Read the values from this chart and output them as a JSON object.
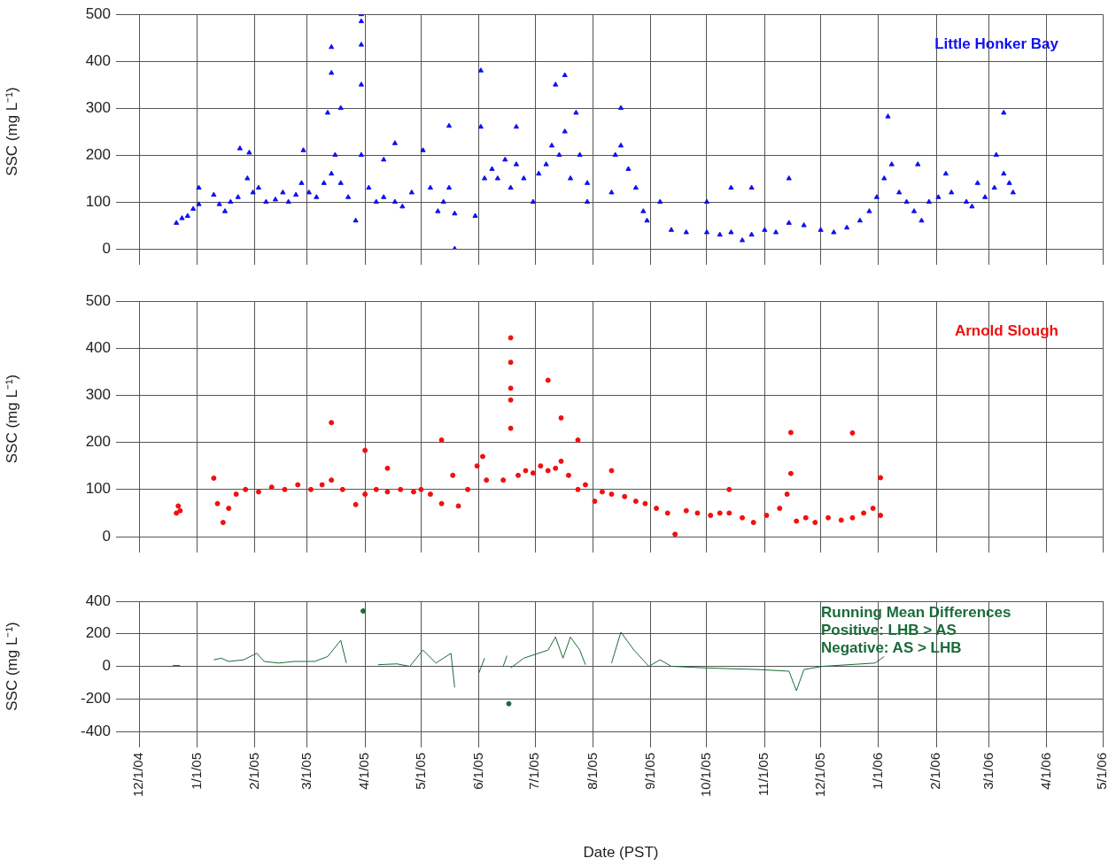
{
  "chart_data": [
    {
      "type": "scatter",
      "ylabel": "SSC (mg L⁻¹)",
      "legend": "top right",
      "marker": "triangle",
      "grid": true,
      "tick_labels": "y",
      "xlim": [
        "2004-12-01",
        "2006-05-01"
      ],
      "xticks": [
        {
          "value": "2004-12-01",
          "label": null
        },
        {
          "value": "2005-01-01",
          "label": null
        },
        {
          "value": "2005-02-01",
          "label": null
        },
        {
          "value": "2005-03-01",
          "label": null
        },
        {
          "value": "2005-04-01",
          "label": null
        },
        {
          "value": "2005-05-01",
          "label": null
        },
        {
          "value": "2005-06-01",
          "label": null
        },
        {
          "value": "2005-07-01",
          "label": null
        },
        {
          "value": "2005-08-01",
          "label": null
        },
        {
          "value": "2005-09-01",
          "label": null
        },
        {
          "value": "2005-10-01",
          "label": null
        },
        {
          "value": "2005-11-01",
          "label": null
        },
        {
          "value": "2005-12-01",
          "label": null
        },
        {
          "value": "2006-01-01",
          "label": null
        },
        {
          "value": "2006-02-01",
          "label": null
        },
        {
          "value": "2006-03-01",
          "label": null
        },
        {
          "value": "2006-04-01",
          "label": null
        },
        {
          "value": "2006-05-01",
          "label": null
        }
      ],
      "ylim": [
        0,
        500
      ],
      "yticks": [
        0,
        100,
        200,
        300,
        400,
        500
      ],
      "series": [
        {
          "name": "Little Honker Bay",
          "color": "#1010f0",
          "x": [
            "2004-12-21",
            "2004-12-24",
            "2004-12-27",
            "2004-12-30",
            "2005-01-02",
            "2005-01-02",
            "2005-01-10",
            "2005-01-13",
            "2005-01-16",
            "2005-01-19",
            "2005-01-23",
            "2005-01-24",
            "2005-01-28",
            "2005-01-29",
            "2005-01-31",
            "2005-02-03",
            "2005-02-07",
            "2005-02-12",
            "2005-02-16",
            "2005-02-19",
            "2005-02-23",
            "2005-02-26",
            "2005-02-27",
            "2005-03-02",
            "2005-03-06",
            "2005-03-10",
            "2005-03-12",
            "2005-03-14",
            "2005-03-14",
            "2005-03-14",
            "2005-03-16",
            "2005-03-19",
            "2005-03-19",
            "2005-03-23",
            "2005-03-27",
            "2005-03-30",
            "2005-03-30",
            "2005-03-30",
            "2005-03-30",
            "2005-03-30",
            "2005-04-03",
            "2005-04-07",
            "2005-04-11",
            "2005-04-11",
            "2005-04-17",
            "2005-04-17",
            "2005-04-21",
            "2005-04-26",
            "2005-05-02",
            "2005-05-06",
            "2005-05-10",
            "2005-05-13",
            "2005-05-16",
            "2005-05-16",
            "2005-05-19",
            "2005-05-19",
            "2005-05-30",
            "2005-06-02",
            "2005-06-02",
            "2005-06-04",
            "2005-06-08",
            "2005-06-11",
            "2005-06-15",
            "2005-06-18",
            "2005-06-21",
            "2005-06-21",
            "2005-06-25",
            "2005-06-30",
            "2005-07-03",
            "2005-07-07",
            "2005-07-10",
            "2005-07-12",
            "2005-07-14",
            "2005-07-17",
            "2005-07-17",
            "2005-07-20",
            "2005-07-23",
            "2005-07-25",
            "2005-07-29",
            "2005-07-29",
            "2005-08-11",
            "2005-08-13",
            "2005-08-16",
            "2005-08-16",
            "2005-08-20",
            "2005-08-24",
            "2005-08-28",
            "2005-08-30",
            "2005-09-06",
            "2005-09-12",
            "2005-09-20",
            "2005-10-01",
            "2005-10-01",
            "2005-10-08",
            "2005-10-14",
            "2005-10-14",
            "2005-10-20",
            "2005-10-25",
            "2005-10-25",
            "2005-11-01",
            "2005-11-07",
            "2005-11-14",
            "2005-11-14",
            "2005-11-22",
            "2005-12-01",
            "2005-12-08",
            "2005-12-15",
            "2005-12-22",
            "2005-12-27",
            "2005-12-31",
            "2006-01-04",
            "2006-01-06",
            "2006-01-08",
            "2006-01-12",
            "2006-01-16",
            "2006-01-20",
            "2006-01-22",
            "2006-01-24",
            "2006-01-28",
            "2006-02-02",
            "2006-02-06",
            "2006-02-09",
            "2006-02-17",
            "2006-02-20",
            "2006-02-23",
            "2006-02-27",
            "2006-03-04",
            "2006-03-05",
            "2006-03-09",
            "2006-03-09",
            "2006-03-12",
            "2006-03-14"
          ],
          "values": [
            55,
            65,
            70,
            85,
            95,
            130,
            115,
            95,
            80,
            100,
            110,
            214,
            150,
            205,
            120,
            130,
            100,
            105,
            120,
            100,
            115,
            140,
            210,
            120,
            110,
            140,
            290,
            430,
            375,
            160,
            200,
            300,
            140,
            110,
            60,
            500,
            485,
            435,
            350,
            200,
            130,
            100,
            110,
            190,
            225,
            100,
            90,
            120,
            210,
            130,
            80,
            100,
            130,
            262,
            75,
            0,
            70,
            380,
            260,
            150,
            170,
            150,
            190,
            130,
            260,
            180,
            150,
            100,
            160,
            180,
            220,
            350,
            200,
            370,
            250,
            150,
            290,
            200,
            100,
            140,
            120,
            200,
            300,
            220,
            170,
            130,
            80,
            60,
            100,
            40,
            35,
            100,
            35,
            30,
            130,
            35,
            18,
            130,
            30,
            40,
            35,
            150,
            55,
            50,
            40,
            35,
            45,
            60,
            80,
            110,
            150,
            282,
            180,
            120,
            100,
            80,
            180,
            60,
            100,
            110,
            160,
            120,
            100,
            90,
            140,
            110,
            130,
            200,
            290,
            160,
            140,
            120
          ]
        }
      ]
    },
    {
      "type": "scatter",
      "ylabel": "SSC (mg L⁻¹)",
      "legend": "top right",
      "marker": "circle",
      "grid": true,
      "tick_labels": "y",
      "xlim": [
        "2004-12-01",
        "2006-05-01"
      ],
      "xticks": [
        {
          "value": "2004-12-01",
          "label": null
        },
        {
          "value": "2005-01-01",
          "label": null
        },
        {
          "value": "2005-02-01",
          "label": null
        },
        {
          "value": "2005-03-01",
          "label": null
        },
        {
          "value": "2005-04-01",
          "label": null
        },
        {
          "value": "2005-05-01",
          "label": null
        },
        {
          "value": "2005-06-01",
          "label": null
        },
        {
          "value": "2005-07-01",
          "label": null
        },
        {
          "value": "2005-08-01",
          "label": null
        },
        {
          "value": "2005-09-01",
          "label": null
        },
        {
          "value": "2005-10-01",
          "label": null
        },
        {
          "value": "2005-11-01",
          "label": null
        },
        {
          "value": "2005-12-01",
          "label": null
        },
        {
          "value": "2006-01-01",
          "label": null
        },
        {
          "value": "2006-02-01",
          "label": null
        },
        {
          "value": "2006-03-01",
          "label": null
        },
        {
          "value": "2006-04-01",
          "label": null
        },
        {
          "value": "2006-05-01",
          "label": null
        }
      ],
      "ylim": [
        0,
        500
      ],
      "yticks": [
        0,
        100,
        200,
        300,
        400,
        500
      ],
      "series": [
        {
          "name": "Arnold Slough",
          "color": "#f01010",
          "x": [
            "2004-12-21",
            "2004-12-22",
            "2004-12-23",
            "2005-01-10",
            "2005-01-12",
            "2005-01-15",
            "2005-01-18",
            "2005-01-22",
            "2005-01-27",
            "2005-02-03",
            "2005-02-10",
            "2005-02-17",
            "2005-02-24",
            "2005-03-03",
            "2005-03-09",
            "2005-03-14",
            "2005-03-14",
            "2005-03-20",
            "2005-03-27",
            "2005-04-01",
            "2005-04-01",
            "2005-04-07",
            "2005-04-13",
            "2005-04-13",
            "2005-04-20",
            "2005-04-27",
            "2005-05-01",
            "2005-05-06",
            "2005-05-12",
            "2005-05-12",
            "2005-05-18",
            "2005-05-21",
            "2005-05-26",
            "2005-05-31",
            "2005-06-03",
            "2005-06-05",
            "2005-06-14",
            "2005-06-18",
            "2005-06-18",
            "2005-06-18",
            "2005-06-18",
            "2005-06-18",
            "2005-06-22",
            "2005-06-26",
            "2005-06-30",
            "2005-07-04",
            "2005-07-08",
            "2005-07-08",
            "2005-07-12",
            "2005-07-15",
            "2005-07-15",
            "2005-07-19",
            "2005-07-24",
            "2005-07-24",
            "2005-07-28",
            "2005-08-02",
            "2005-08-06",
            "2005-08-11",
            "2005-08-11",
            "2005-08-18",
            "2005-08-24",
            "2005-08-29",
            "2005-09-04",
            "2005-09-10",
            "2005-09-14",
            "2005-09-20",
            "2005-09-26",
            "2005-10-03",
            "2005-10-08",
            "2005-10-13",
            "2005-10-13",
            "2005-10-20",
            "2005-10-26",
            "2005-11-02",
            "2005-11-09",
            "2005-11-13",
            "2005-11-15",
            "2005-11-15",
            "2005-11-18",
            "2005-11-23",
            "2005-11-28",
            "2005-12-05",
            "2005-12-12",
            "2005-12-18",
            "2005-12-18",
            "2005-12-24",
            "2005-12-29",
            "2006-01-02",
            "2006-01-02"
          ],
          "values": [
            50,
            65,
            55,
            124,
            70,
            30,
            60,
            90,
            100,
            95,
            105,
            100,
            110,
            100,
            110,
            242,
            120,
            100,
            68,
            183,
            90,
            100,
            145,
            95,
            100,
            95,
            100,
            90,
            205,
            70,
            130,
            65,
            100,
            150,
            170,
            120,
            120,
            422,
            370,
            315,
            290,
            230,
            130,
            140,
            135,
            150,
            332,
            140,
            145,
            252,
            160,
            130,
            205,
            100,
            110,
            75,
            95,
            140,
            90,
            85,
            75,
            70,
            60,
            50,
            5,
            55,
            50,
            45,
            50,
            100,
            50,
            40,
            30,
            45,
            60,
            90,
            221,
            134,
            33,
            40,
            30,
            40,
            35,
            220,
            40,
            50,
            60,
            125,
            45
          ]
        }
      ]
    },
    {
      "type": "line",
      "ylabel": "SSC (mg L⁻¹)",
      "xlabel": "Date (PST)",
      "grid": true,
      "annotations": [
        "Running Mean Differences",
        "Positive: LHB > AS",
        "Negative: AS > LHB"
      ],
      "xlim": [
        "2004-12-01",
        "2006-05-01"
      ],
      "xticks": [
        {
          "value": "2004-12-01",
          "label": "12/1/04"
        },
        {
          "value": "2005-01-01",
          "label": "1/1/05"
        },
        {
          "value": "2005-02-01",
          "label": "2/1/05"
        },
        {
          "value": "2005-03-01",
          "label": "3/1/05"
        },
        {
          "value": "2005-04-01",
          "label": "4/1/05"
        },
        {
          "value": "2005-05-01",
          "label": "5/1/05"
        },
        {
          "value": "2005-06-01",
          "label": "6/1/05"
        },
        {
          "value": "2005-07-01",
          "label": "7/1/05"
        },
        {
          "value": "2005-08-01",
          "label": "8/1/05"
        },
        {
          "value": "2005-09-01",
          "label": "9/1/05"
        },
        {
          "value": "2005-10-01",
          "label": "10/1/05"
        },
        {
          "value": "2005-11-01",
          "label": "11/1/05"
        },
        {
          "value": "2005-12-01",
          "label": "12/1/05"
        },
        {
          "value": "2006-01-01",
          "label": "1/1/06"
        },
        {
          "value": "2006-02-01",
          "label": "2/1/06"
        },
        {
          "value": "2006-03-01",
          "label": "3/1/06"
        },
        {
          "value": "2006-04-01",
          "label": "4/1/06"
        },
        {
          "value": "2006-05-01",
          "label": "5/1/06"
        }
      ],
      "ylim": [
        -400,
        400
      ],
      "yticks": [
        -400,
        -200,
        0,
        200,
        400
      ],
      "series": [
        {
          "color": "#1a6b3a",
          "x": [
            "2004-12-19",
            "2004-12-23"
          ],
          "values": [
            5,
            5
          ]
        },
        {
          "color": "#1a6b3a",
          "x": [
            "2005-01-10",
            "2005-01-14",
            "2005-01-18",
            "2005-01-26",
            "2005-02-02",
            "2005-02-06",
            "2005-02-14",
            "2005-02-22",
            "2005-03-05",
            "2005-03-12",
            "2005-03-19",
            "2005-03-22"
          ],
          "values": [
            40,
            50,
            30,
            40,
            80,
            30,
            20,
            30,
            30,
            60,
            160,
            20
          ]
        },
        {
          "color": "#1a6b3a",
          "marker": "circle",
          "x": [
            "2005-03-31"
          ],
          "values": [
            340
          ]
        },
        {
          "color": "#1a6b3a",
          "x": [
            "2005-04-08",
            "2005-04-18",
            "2005-04-25",
            "2005-05-02",
            "2005-05-09",
            "2005-05-17",
            "2005-05-19"
          ],
          "values": [
            10,
            15,
            0,
            100,
            20,
            80,
            -130
          ]
        },
        {
          "color": "#1a6b3a",
          "x": [
            "2005-06-01",
            "2005-06-04"
          ],
          "values": [
            -40,
            50
          ]
        },
        {
          "color": "#1a6b3a",
          "x": [
            "2005-06-14",
            "2005-06-16"
          ],
          "values": [
            0,
            65
          ]
        },
        {
          "color": "#1a6b3a",
          "marker": "circle",
          "x": [
            "2005-06-17"
          ],
          "values": [
            -230
          ]
        },
        {
          "color": "#1a6b3a",
          "x": [
            "2005-06-18",
            "2005-06-25",
            "2005-07-08",
            "2005-07-12",
            "2005-07-16",
            "2005-07-20",
            "2005-07-25",
            "2005-07-28"
          ],
          "values": [
            -10,
            50,
            100,
            180,
            50,
            180,
            100,
            10
          ]
        },
        {
          "color": "#1a6b3a",
          "x": [
            "2005-08-11",
            "2005-08-16",
            "2005-08-23",
            "2005-08-31",
            "2005-09-06",
            "2005-09-12",
            "2005-10-01",
            "2005-10-29",
            "2005-11-14",
            "2005-11-18",
            "2005-11-22",
            "2005-12-02",
            "2005-12-30",
            "2006-01-04"
          ],
          "values": [
            20,
            210,
            100,
            0,
            40,
            0,
            -10,
            -20,
            -30,
            -150,
            -20,
            0,
            20,
            60
          ]
        }
      ]
    }
  ]
}
